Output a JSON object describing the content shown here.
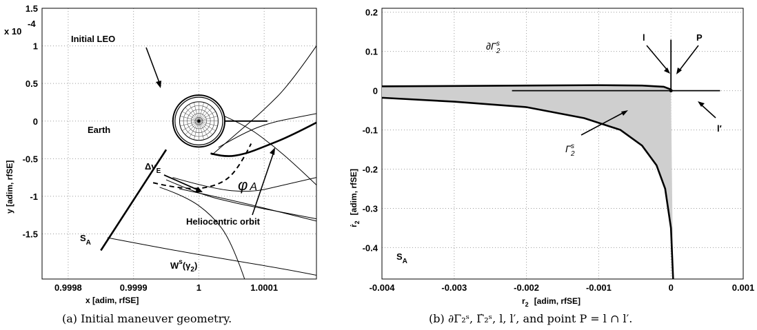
{
  "chart_data": [
    {
      "type": "line",
      "caption": "(a) Initial maneuver geometry.",
      "xlabel": "x   [adim, rfSE]",
      "ylabel": "y   [adim, rfSE]",
      "y_exponent": "x 10",
      "y_exponent_power": "-4",
      "xlim": [
        0.99976,
        1.00018
      ],
      "ylim": [
        -2.1,
        1.5
      ],
      "x_ticks": [
        0.9998,
        0.9999,
        1,
        1.0001
      ],
      "x_tick_labels": [
        "0.9998",
        "0.9999",
        "1",
        "1.0001"
      ],
      "y_ticks": [
        1.5,
        1,
        0.5,
        0,
        -0.5,
        -1,
        -1.5
      ],
      "y_tick_labels": [
        "1.5",
        "1",
        "0.5",
        "0",
        "-0.5",
        "-1",
        "-1.5"
      ],
      "grid": true,
      "annotations": {
        "initial_leo": "Initial LEO",
        "earth": "Earth",
        "delta_v": "Δv",
        "delta_v_sub": "E",
        "phi": "φ",
        "phi_sub": "A",
        "helio": "Heliocentric orbit",
        "sa": "S",
        "sa_sub": "A",
        "ws": "W",
        "ws_sup": "s",
        "ws_arg": "(γ",
        "ws_arg_sub": "2",
        "ws_close": ")"
      },
      "earth_center": [
        1.0,
        0.0
      ],
      "earth_radius": 2.95e-05,
      "leo_radius": 3.65e-05,
      "series": [
        {
          "role": "thin-upper-1",
          "x": [
            1.00002,
            1.00006,
            1.0001,
            1.00014,
            1.00018
          ],
          "y": [
            -0.45,
            -0.15,
            0.15,
            0.5,
            1.0
          ]
        },
        {
          "role": "thin-upper-2",
          "x": [
            1.00003,
            1.00007,
            1.00011,
            1.00015,
            1.00018
          ],
          "y": [
            -0.35,
            -0.15,
            -0.02,
            0.05,
            0.1
          ]
        },
        {
          "role": "thin-upper-3",
          "x": [
            1.00003,
            1.00007,
            1.00011,
            1.00015,
            1.00018
          ],
          "y": [
            0.1,
            -0.05,
            -0.3,
            -0.6,
            -0.85
          ]
        },
        {
          "role": "heliocentric-orbit",
          "x": [
            1.000018,
            1.00004,
            1.00007,
            1.0001,
            1.00014,
            1.00018
          ],
          "y": [
            -0.43,
            -0.48,
            -0.44,
            -0.34,
            -0.2,
            -0.02
          ]
        },
        {
          "role": "thin-lower-1",
          "x": [
            0.99996,
            1.00002,
            1.00008,
            1.00013,
            1.00018
          ],
          "y": [
            -0.75,
            -0.9,
            -0.95,
            -0.85,
            -0.75
          ]
        },
        {
          "role": "thin-lower-2",
          "x": [
            0.99995,
            1.0,
            1.00006,
            1.00012,
            1.00018
          ],
          "y": [
            -0.78,
            -0.97,
            -1.1,
            -1.2,
            -1.3
          ]
        },
        {
          "role": "thin-lower-3",
          "x": [
            0.99997,
            1.00005,
            1.00012,
            1.00018
          ],
          "y": [
            -0.9,
            -1.05,
            -1.2,
            -1.33
          ]
        },
        {
          "role": "ws-left",
          "x": [
            0.99994,
            0.99998,
            1.00002,
            1.00005,
            1.00007
          ],
          "y": [
            -0.88,
            -1.0,
            -1.25,
            -1.6,
            -2.1
          ]
        },
        {
          "role": "sa-line",
          "x": [
            0.99985,
            0.99995
          ],
          "y": [
            -1.72,
            -0.38
          ]
        },
        {
          "role": "ws-lower",
          "x": [
            0.99986,
            0.99995,
            1.00005,
            1.00014,
            1.00018
          ],
          "y": [
            -1.55,
            -1.7,
            -1.85,
            -1.98,
            -2.05
          ]
        },
        {
          "role": "dashed-phi",
          "x": [
            0.99993,
            0.99998,
            1.00003,
            1.00006,
            1.00008
          ],
          "y": [
            -0.82,
            -0.92,
            -0.86,
            -0.65,
            -0.3
          ]
        },
        {
          "role": "horizontal-segment",
          "x": [
            1.00002,
            1.000105
          ],
          "y": [
            0.0,
            0.0
          ]
        }
      ]
    },
    {
      "type": "area",
      "caption": "(b) ∂Γ₂ˢ, Γ̇₂ˢ, l, l′, and point P = l ∩ l′.",
      "xlabel": "r",
      "xlabel_sub": "2",
      "xlabel_units": "[adim, rfSE]",
      "ylabel": "ṙ",
      "ylabel_sub": "2",
      "ylabel_units": "[adim, rfSE]",
      "xlim": [
        -0.004,
        0.001
      ],
      "ylim": [
        -0.48,
        0.21
      ],
      "x_ticks": [
        -0.004,
        -0.003,
        -0.002,
        -0.001,
        0,
        0.001
      ],
      "x_tick_labels": [
        "-0.004",
        "-0.003",
        "-0.002",
        "-0.001",
        "0",
        "0.001"
      ],
      "y_ticks": [
        0.2,
        0.1,
        0,
        -0.1,
        -0.2,
        -0.3,
        -0.4
      ],
      "y_tick_labels": [
        "0.2",
        "0.1",
        "0",
        "-0.1",
        "-0.2",
        "-0.3",
        "-0.4"
      ],
      "grid": true,
      "annotations": {
        "boundary": "∂Γ",
        "boundary_sup": "s",
        "boundary_sub": "2",
        "l": "l",
        "p": "P",
        "lprime": "l′",
        "gamma_dot": "Γ̇",
        "gamma_dot_sup": "s",
        "gamma_dot_sub": "2",
        "sa": "S",
        "sa_sub": "A"
      },
      "upper_boundary": {
        "x": [
          -0.004,
          -0.003,
          -0.002,
          -0.001,
          -0.0004,
          -0.0001,
          0.0
        ],
        "y": [
          0.011,
          0.012,
          0.013,
          0.014,
          0.013,
          0.01,
          0.003
        ]
      },
      "lower_boundary": {
        "x": [
          -0.004,
          -0.003,
          -0.002,
          -0.0012,
          -0.0007,
          -0.0004,
          -0.0002,
          -8e-05,
          0.0,
          3e-05
        ],
        "y": [
          -0.018,
          -0.028,
          -0.042,
          -0.07,
          -0.1,
          -0.14,
          -0.19,
          -0.25,
          -0.35,
          -0.48
        ]
      },
      "line_l": {
        "x": [
          -0.0,
          -0.0
        ],
        "y": [
          0.003,
          0.13
        ]
      },
      "line_lprime": {
        "x": [
          -0.0022,
          0.00068
        ],
        "y": [
          0.0,
          0.0
        ]
      },
      "point_P": [
        0.0,
        0.0
      ]
    }
  ]
}
